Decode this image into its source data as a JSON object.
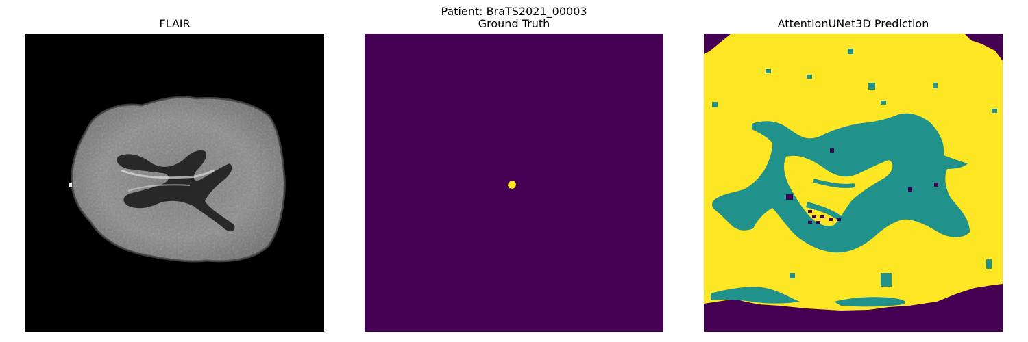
{
  "figure": {
    "suptitle": "Patient: BraTS2021_00003"
  },
  "panels": [
    {
      "title": "FLAIR",
      "image": "flair-mri-axial-slice"
    },
    {
      "title": "Ground Truth",
      "image": "ground-truth-segmentation-mask"
    },
    {
      "title": "AttentionUNet3D Prediction",
      "image": "model-prediction-segmentation-mask"
    }
  ],
  "colors": {
    "background_label": "#440154",
    "class_mid": "#21918c",
    "class_high": "#fde725",
    "flair_background": "#000000"
  }
}
